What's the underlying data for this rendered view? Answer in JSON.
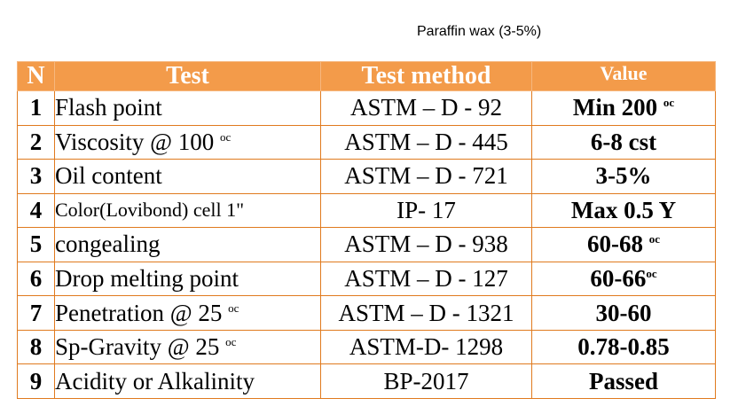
{
  "caption": "Paraffin wax (3-5%)",
  "table": {
    "headers": [
      "N",
      "Test",
      "Test method",
      "Value"
    ],
    "rows": [
      {
        "n": "1",
        "test": "Flash point",
        "test_sup": "",
        "method": "ASTM – D - 92",
        "value": "Min 200",
        "value_sup": "oc"
      },
      {
        "n": "2",
        "test": "Viscosity @ 100",
        "test_sup": "oc",
        "method": "ASTM – D - 445",
        "value": "6-8 cst",
        "value_sup": ""
      },
      {
        "n": "3",
        "test": "Oil content",
        "test_sup": "",
        "method": "ASTM – D - 721",
        "value": "3-5%",
        "value_sup": ""
      },
      {
        "n": "4",
        "test": "Color(Lovibond) cell 1\"",
        "test_sup": "",
        "method": "IP- 17",
        "value": "Max 0.5 Y",
        "value_sup": ""
      },
      {
        "n": "5",
        "test": "congealing",
        "test_sup": "",
        "method": "ASTM – D - 938",
        "value": "60-68",
        "value_sup": "oc"
      },
      {
        "n": "6",
        "test": "Drop melting point",
        "test_sup": "",
        "method": "ASTM – D - 127",
        "value": "60-66",
        "value_sup": "oc"
      },
      {
        "n": "7",
        "test": "Penetration @ 25",
        "test_sup": "oc",
        "method": "ASTM – D - 1321",
        "value": "30-60",
        "value_sup": ""
      },
      {
        "n": "8",
        "test": "Sp-Gravity @ 25",
        "test_sup": "oc",
        "method": "ASTM-D- 1298",
        "value": "0.78-0.85",
        "value_sup": ""
      },
      {
        "n": "9",
        "test": "Acidity or Alkalinity",
        "test_sup": "",
        "method": "BP-2017",
        "value": "Passed",
        "value_sup": ""
      }
    ]
  },
  "colors": {
    "header_bg": "#f39b4a",
    "border": "#e07a1e",
    "header_text": "#ffffff"
  }
}
